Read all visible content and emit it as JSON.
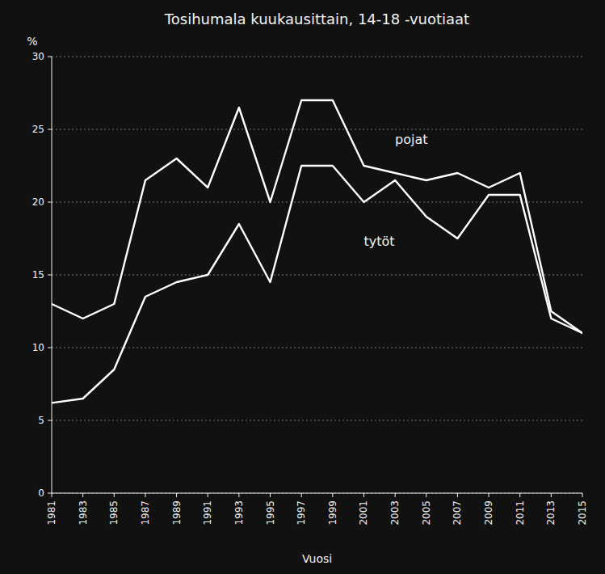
{
  "chart_data": {
    "type": "line",
    "title": "Tosihumala kuukausittain, 14-18 -vuotiaat",
    "x_label": "Vuosi",
    "y_label": "%",
    "x": [
      1981,
      1983,
      1985,
      1987,
      1989,
      1991,
      1993,
      1995,
      1997,
      1999,
      2001,
      2003,
      2005,
      2007,
      2009,
      2011,
      2013,
      2015
    ],
    "series": [
      {
        "color": "#ffffff",
        "values": [
          13.0,
          12.0,
          13.0,
          21.5,
          23.0,
          21.0,
          26.5,
          20.0,
          27.0,
          27.0,
          22.5,
          22.0,
          21.5,
          22.0,
          21.0,
          22.0,
          12.5,
          11.0
        ]
      },
      {
        "color": "#ffffff",
        "values": [
          6.2,
          6.5,
          8.5,
          13.5,
          14.5,
          15.0,
          18.5,
          14.5,
          22.5,
          22.5,
          20.0,
          21.5,
          19.0,
          17.5,
          20.5,
          20.5,
          12.0,
          11.0
        ]
      }
    ],
    "annotations": [
      {
        "text": "pojat",
        "x": 2003,
        "y": 24.0
      },
      {
        "text": "tytöt",
        "x": 2001,
        "y": 17.0
      }
    ],
    "xlim": [
      1981,
      2015
    ],
    "xticks": [
      1981,
      1983,
      1985,
      1987,
      1989,
      1991,
      1993,
      1995,
      1997,
      1999,
      2001,
      2003,
      2005,
      2007,
      2009,
      2011,
      2013,
      2015
    ],
    "ylim": [
      0,
      30
    ],
    "yticks": [
      0,
      5,
      10,
      15,
      20,
      25,
      30
    ],
    "grid": true
  }
}
